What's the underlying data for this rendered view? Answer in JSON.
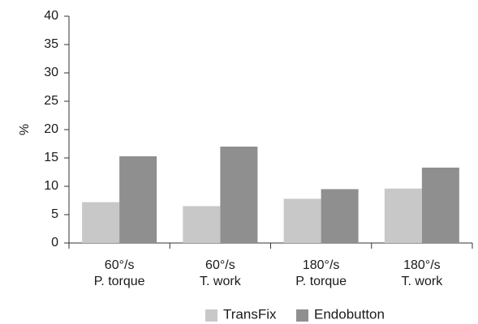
{
  "chart_data": {
    "type": "bar",
    "title": "",
    "xlabel": "",
    "ylabel": "%",
    "ylim": [
      0,
      40
    ],
    "yticks": [
      0,
      5,
      10,
      15,
      20,
      25,
      30,
      35,
      40
    ],
    "grid": false,
    "legend_position": "bottom-center",
    "categories": [
      {
        "line1": "60°/s",
        "line2": "P. torque"
      },
      {
        "line1": "60°/s",
        "line2": "T. work"
      },
      {
        "line1": "180°/s",
        "line2": "P. torque"
      },
      {
        "line1": "180°/s",
        "line2": "T. work"
      }
    ],
    "series": [
      {
        "name": "TransFix",
        "color": "#c8c8c8",
        "values": [
          7.2,
          6.5,
          7.8,
          9.6
        ]
      },
      {
        "name": "Endobutton",
        "color": "#8f8f8f",
        "values": [
          15.3,
          17.0,
          9.5,
          13.3
        ]
      }
    ]
  }
}
